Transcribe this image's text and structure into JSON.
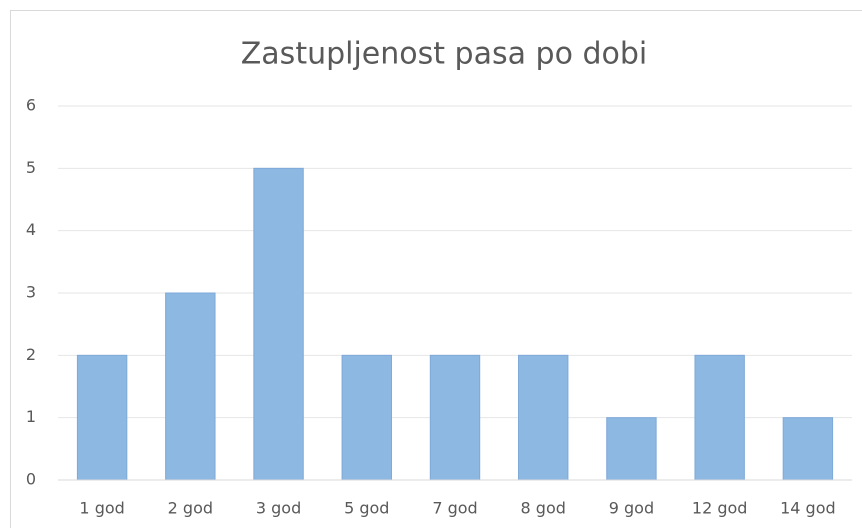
{
  "chart_data": {
    "type": "bar",
    "title": "Zastupljenost pasa po dobi",
    "categories": [
      "1 god",
      "2 god",
      "3 god",
      "5 god",
      "7 god",
      "8 god",
      "9 god",
      "12 god",
      "14 god"
    ],
    "values": [
      2,
      3,
      5,
      2,
      2,
      2,
      1,
      2,
      1
    ],
    "color": "#8db8e2",
    "ylim": [
      0,
      6
    ],
    "yticks": [
      0,
      1,
      2,
      3,
      4,
      5,
      6
    ],
    "grid": true
  }
}
